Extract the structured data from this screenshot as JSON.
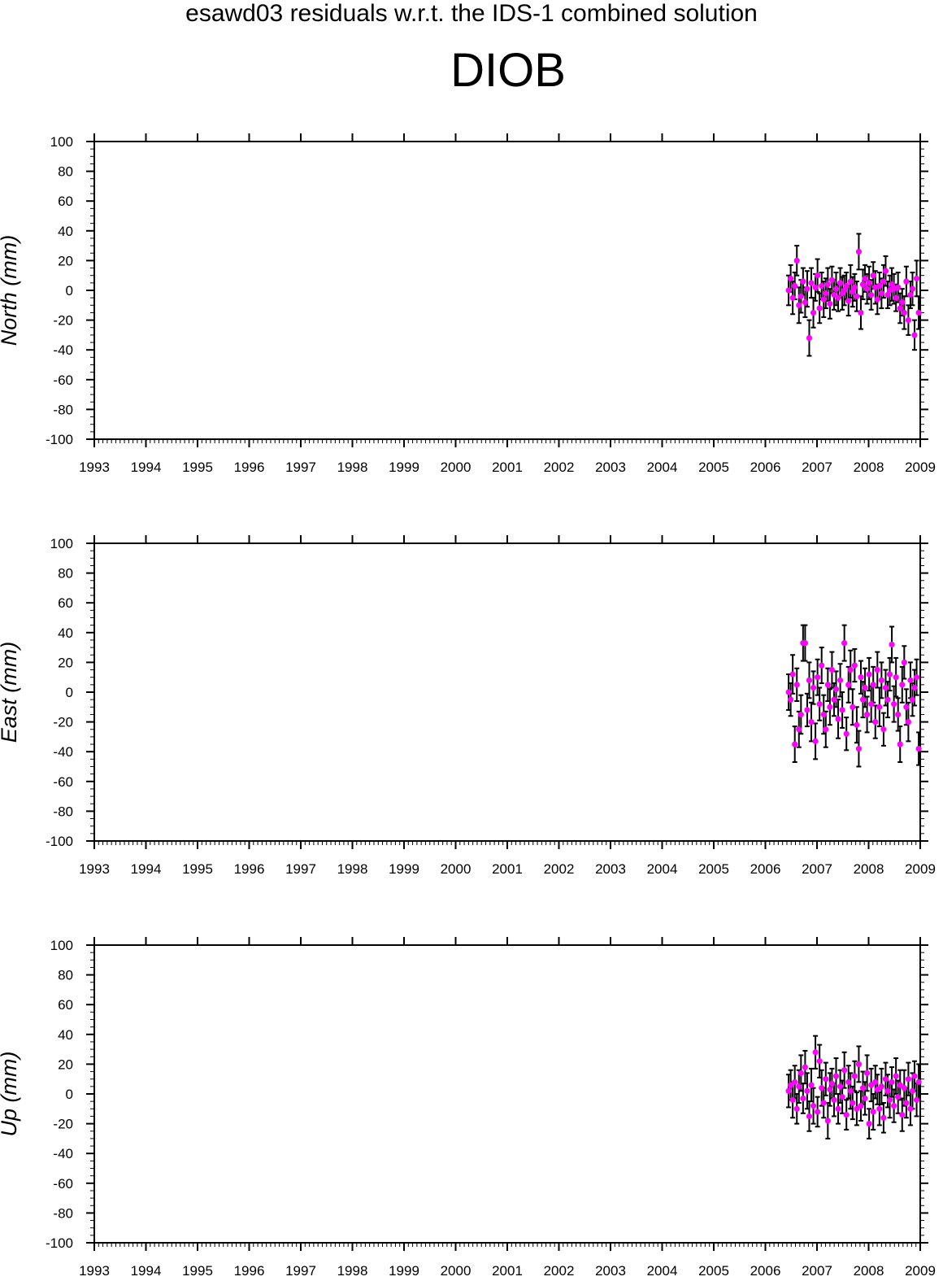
{
  "figure": {
    "suptitle": "esawd03 residuals w.r.t. the IDS-1 combined solution",
    "station": "DIOB"
  },
  "colors": {
    "points": "#ff00ff",
    "errorbars": "#000000",
    "axes": "#000000",
    "background": "#ffffff"
  },
  "chart_data": [
    {
      "type": "scatter",
      "panel": "north",
      "ylabel": "North (mm)",
      "xlim": [
        1993,
        2009
      ],
      "ylim": [
        -100,
        100
      ],
      "x_ticks": [
        "1993",
        "1994",
        "1995",
        "1996",
        "1997",
        "1998",
        "1999",
        "2000",
        "2001",
        "2002",
        "2003",
        "2004",
        "2005",
        "2006",
        "2007",
        "2008",
        "2009"
      ],
      "y_ticks": [
        "100",
        "80",
        "60",
        "40",
        "20",
        "0",
        "-20",
        "-40",
        "-60",
        "-80",
        "-100"
      ],
      "error_bars": true,
      "series": [
        {
          "x": [
            2006.45,
            2006.49,
            2006.53,
            2006.57,
            2006.61,
            2006.65,
            2006.69,
            2006.73,
            2006.77,
            2006.81,
            2006.85,
            2006.89,
            2006.93,
            2006.97,
            2007.01,
            2007.05,
            2007.09,
            2007.13,
            2007.17,
            2007.21,
            2007.25,
            2007.29,
            2007.33,
            2007.37,
            2007.41,
            2007.45,
            2007.49,
            2007.53,
            2007.57,
            2007.61,
            2007.65,
            2007.69,
            2007.73,
            2007.77,
            2007.81,
            2007.85,
            2007.89,
            2007.93,
            2007.97,
            2008.01,
            2008.05,
            2008.09,
            2008.13,
            2008.17,
            2008.21,
            2008.25,
            2008.29,
            2008.33,
            2008.37,
            2008.41,
            2008.45,
            2008.49,
            2008.53,
            2008.57,
            2008.61,
            2008.65,
            2008.69,
            2008.73,
            2008.77,
            2008.81,
            2008.85,
            2008.89,
            2008.93,
            2008.97
          ],
          "y": [
            0,
            8,
            -5,
            3,
            20,
            -10,
            -4,
            6,
            -8,
            1,
            -32,
            5,
            -15,
            2,
            10,
            -12,
            3,
            -6,
            -2,
            4,
            -9,
            7,
            -3,
            1,
            -5,
            5,
            -2,
            0,
            3,
            -7,
            6,
            -1,
            2,
            -4,
            26,
            -15,
            4,
            8,
            1,
            5,
            -3,
            10,
            2,
            -6,
            3,
            -2,
            6,
            13,
            -3,
            0,
            4,
            1,
            -5,
            2,
            -12,
            -8,
            -15,
            6,
            -20,
            -3,
            1,
            -30,
            8,
            -15
          ],
          "err": [
            10,
            9,
            11,
            9,
            10,
            12,
            11,
            9,
            10,
            12,
            12,
            10,
            10,
            9,
            11,
            10,
            9,
            12,
            10,
            11,
            10,
            9,
            10,
            11,
            9,
            10,
            11,
            10,
            9,
            10,
            11,
            10,
            9,
            10,
            12,
            11,
            10,
            9,
            10,
            11,
            10,
            9,
            11,
            10,
            9,
            10,
            11,
            10,
            9,
            10,
            11,
            10,
            9,
            10,
            10,
            9,
            11,
            10,
            10,
            9,
            11,
            10,
            12,
            11
          ]
        }
      ]
    },
    {
      "type": "scatter",
      "panel": "east",
      "ylabel": "East (mm)",
      "xlim": [
        1993,
        2009
      ],
      "ylim": [
        -100,
        100
      ],
      "x_ticks": [
        "1993",
        "1994",
        "1995",
        "1996",
        "1997",
        "1998",
        "1999",
        "2000",
        "2001",
        "2002",
        "2003",
        "2004",
        "2005",
        "2006",
        "2007",
        "2008",
        "2009"
      ],
      "y_ticks": [
        "100",
        "80",
        "60",
        "40",
        "20",
        "0",
        "-20",
        "-40",
        "-60",
        "-80",
        "-100"
      ],
      "error_bars": true,
      "series": [
        {
          "x": [
            2006.45,
            2006.49,
            2006.53,
            2006.57,
            2006.61,
            2006.65,
            2006.69,
            2006.73,
            2006.77,
            2006.81,
            2006.85,
            2006.89,
            2006.93,
            2006.97,
            2007.01,
            2007.05,
            2007.09,
            2007.13,
            2007.17,
            2007.21,
            2007.25,
            2007.29,
            2007.33,
            2007.37,
            2007.41,
            2007.45,
            2007.49,
            2007.53,
            2007.57,
            2007.61,
            2007.65,
            2007.69,
            2007.73,
            2007.77,
            2007.81,
            2007.85,
            2007.89,
            2007.93,
            2007.97,
            2008.01,
            2008.05,
            2008.09,
            2008.13,
            2008.17,
            2008.21,
            2008.25,
            2008.29,
            2008.33,
            2008.37,
            2008.41,
            2008.45,
            2008.49,
            2008.53,
            2008.57,
            2008.61,
            2008.65,
            2008.69,
            2008.73,
            2008.77,
            2008.81,
            2008.85,
            2008.89,
            2008.93,
            2008.97
          ],
          "y": [
            0,
            -5,
            12,
            -35,
            5,
            -25,
            -15,
            33,
            33,
            -12,
            8,
            -20,
            3,
            -33,
            10,
            -8,
            18,
            -15,
            -25,
            5,
            -10,
            15,
            -5,
            2,
            -18,
            8,
            -12,
            33,
            -28,
            5,
            15,
            -10,
            18,
            -22,
            -38,
            10,
            -5,
            3,
            -15,
            12,
            -8,
            5,
            -20,
            15,
            -10,
            8,
            -25,
            3,
            -5,
            12,
            32,
            -8,
            10,
            -15,
            -35,
            5,
            20,
            -10,
            -20,
            8,
            -5,
            3,
            10,
            -38
          ],
          "err": [
            12,
            11,
            13,
            12,
            11,
            12,
            13,
            12,
            12,
            11,
            12,
            13,
            11,
            12,
            12,
            11,
            12,
            13,
            12,
            11,
            12,
            12,
            11,
            12,
            13,
            11,
            12,
            12,
            11,
            12,
            13,
            12,
            11,
            12,
            12,
            11,
            12,
            13,
            12,
            11,
            12,
            12,
            11,
            12,
            13,
            12,
            11,
            12,
            12,
            11,
            12,
            12,
            13,
            11,
            12,
            12,
            11,
            12,
            13,
            12,
            11,
            12,
            12,
            11
          ]
        }
      ]
    },
    {
      "type": "scatter",
      "panel": "up",
      "ylabel": "Up (mm)",
      "xlim": [
        1993,
        2009
      ],
      "ylim": [
        -100,
        100
      ],
      "x_ticks": [
        "1993",
        "1994",
        "1995",
        "1996",
        "1997",
        "1998",
        "1999",
        "2000",
        "2001",
        "2002",
        "2003",
        "2004",
        "2005",
        "2006",
        "2007",
        "2008",
        "2009"
      ],
      "y_ticks": [
        "100",
        "80",
        "60",
        "40",
        "20",
        "0",
        "-20",
        "-40",
        "-60",
        "-80",
        "-100"
      ],
      "error_bars": true,
      "series": [
        {
          "x": [
            2006.45,
            2006.49,
            2006.53,
            2006.57,
            2006.61,
            2006.65,
            2006.69,
            2006.73,
            2006.77,
            2006.81,
            2006.85,
            2006.89,
            2006.93,
            2006.97,
            2007.01,
            2007.05,
            2007.09,
            2007.13,
            2007.17,
            2007.21,
            2007.25,
            2007.29,
            2007.33,
            2007.37,
            2007.41,
            2007.45,
            2007.49,
            2007.53,
            2007.57,
            2007.61,
            2007.65,
            2007.69,
            2007.73,
            2007.77,
            2007.81,
            2007.85,
            2007.89,
            2007.93,
            2007.97,
            2008.01,
            2008.05,
            2008.09,
            2008.13,
            2008.17,
            2008.21,
            2008.25,
            2008.29,
            2008.33,
            2008.37,
            2008.41,
            2008.45,
            2008.49,
            2008.53,
            2008.57,
            2008.61,
            2008.65,
            2008.69,
            2008.73,
            2008.77,
            2008.81,
            2008.85,
            2008.89,
            2008.93,
            2008.97
          ],
          "y": [
            2,
            6,
            -4,
            8,
            -10,
            5,
            14,
            -3,
            18,
            2,
            -15,
            6,
            -8,
            28,
            -12,
            22,
            4,
            -6,
            10,
            -18,
            3,
            7,
            -4,
            12,
            -10,
            5,
            -2,
            16,
            -14,
            8,
            2,
            -6,
            12,
            -10,
            20,
            -8,
            4,
            -3,
            14,
            -20,
            6,
            -12,
            8,
            3,
            -10,
            5,
            -16,
            10,
            2,
            -4,
            8,
            -8,
            12,
            -2,
            6,
            -14,
            4,
            -6,
            10,
            -10,
            2,
            12,
            -4,
            8
          ],
          "err": [
            11,
            10,
            12,
            11,
            10,
            11,
            12,
            10,
            11,
            12,
            10,
            11,
            12,
            11,
            10,
            11,
            12,
            10,
            11,
            12,
            11,
            10,
            11,
            12,
            10,
            11,
            11,
            12,
            10,
            11,
            12,
            11,
            10,
            11,
            12,
            10,
            11,
            11,
            12,
            10,
            11,
            12,
            11,
            10,
            11,
            12,
            10,
            11,
            11,
            12,
            10,
            11,
            12,
            11,
            10,
            11,
            12,
            10,
            11,
            11,
            12,
            10,
            11,
            12
          ]
        }
      ]
    }
  ]
}
